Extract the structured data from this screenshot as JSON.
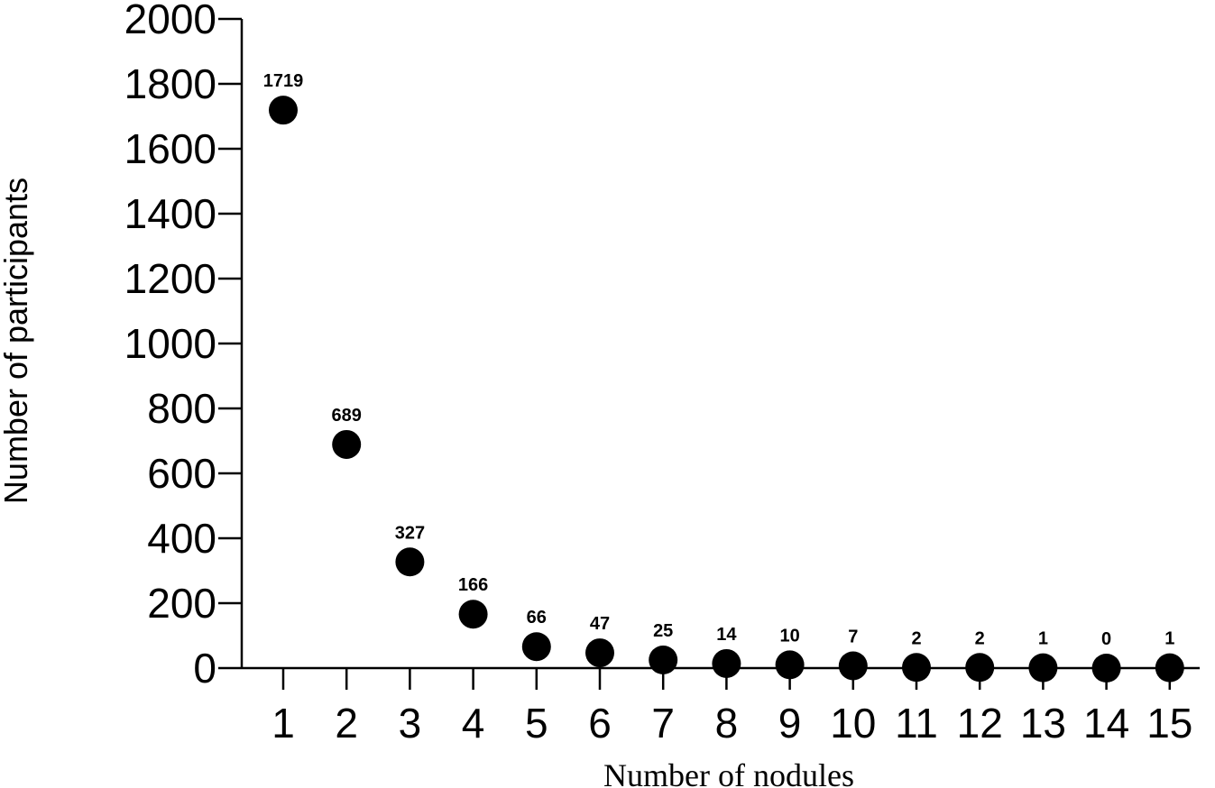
{
  "chart_data": {
    "type": "scatter",
    "title": "",
    "xlabel": "Number of nodules",
    "ylabel": "Number of participants",
    "x": [
      1,
      2,
      3,
      4,
      5,
      6,
      7,
      8,
      9,
      10,
      11,
      12,
      13,
      14,
      15
    ],
    "y": [
      1719,
      689,
      327,
      166,
      66,
      47,
      25,
      14,
      10,
      7,
      2,
      2,
      1,
      0,
      1
    ],
    "data_labels": [
      "1719",
      "689",
      "327",
      "166",
      "66",
      "47",
      "25",
      "14",
      "10",
      "7",
      "2",
      "2",
      "1",
      "0",
      "1"
    ],
    "x_ticks": [
      "1",
      "2",
      "3",
      "4",
      "5",
      "6",
      "7",
      "8",
      "9",
      "10",
      "11",
      "12",
      "13",
      "14",
      "15"
    ],
    "y_ticks": [
      0,
      200,
      400,
      600,
      800,
      1000,
      1200,
      1400,
      1600,
      1800,
      2000
    ],
    "ylim": [
      0,
      2000
    ],
    "grid": false,
    "legend": "none",
    "marker_color": "#000000"
  }
}
